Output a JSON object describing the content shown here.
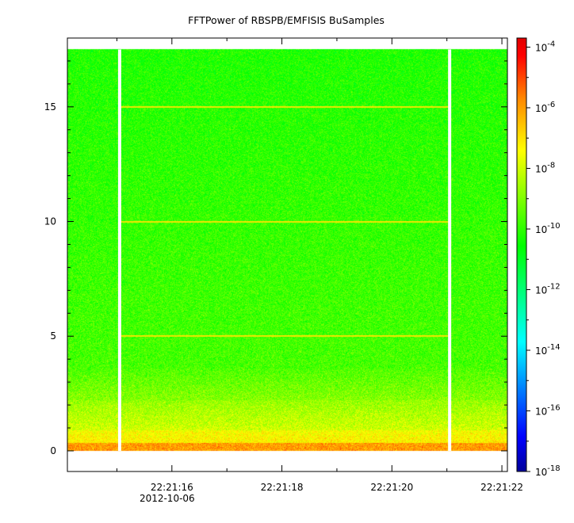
{
  "chart_data": {
    "type": "heatmap",
    "title": "FFTPower of RBSPB/EMFISIS  BuSamples",
    "xlabel": "",
    "ylabel": "",
    "x_ticks": [
      {
        "label": "22:21:16",
        "sublabel": "2012-10-06"
      },
      {
        "label": "22:21:18",
        "sublabel": ""
      },
      {
        "label": "22:21:20",
        "sublabel": ""
      },
      {
        "label": "22:21:22",
        "sublabel": ""
      }
    ],
    "x_tick_seconds": [
      16,
      18,
      20,
      22
    ],
    "xlim_seconds": [
      14.1,
      22.1
    ],
    "y_ticks": [
      "0",
      "5",
      "10",
      "15"
    ],
    "y_tick_values": [
      0,
      5,
      10,
      15
    ],
    "ylim": [
      -0.9,
      18.0
    ],
    "data_ymax": 17.5,
    "gaps_seconds": [
      15.05,
      21.05
    ],
    "harmonic_lines": [
      5,
      10,
      15
    ],
    "colorbar": {
      "scale": "log",
      "ticks": [
        {
          "base": "10",
          "exp": "-18",
          "value": -18
        },
        {
          "base": "10",
          "exp": "-16",
          "value": -16
        },
        {
          "base": "10",
          "exp": "-14",
          "value": -14
        },
        {
          "base": "10",
          "exp": "-12",
          "value": -12
        },
        {
          "base": "10",
          "exp": "-10",
          "value": -10
        },
        {
          "base": "10",
          "exp": "-8",
          "value": -8
        },
        {
          "base": "10",
          "exp": "-6",
          "value": -6
        },
        {
          "base": "10",
          "exp": "-4",
          "value": -4
        }
      ],
      "range_exp": [
        -18,
        -3.7
      ],
      "colors": [
        "#00009a",
        "#0000ff",
        "#00ffff",
        "#00ff00",
        "#ffff00",
        "#ff8800",
        "#ff0000",
        "#e00000"
      ]
    }
  }
}
